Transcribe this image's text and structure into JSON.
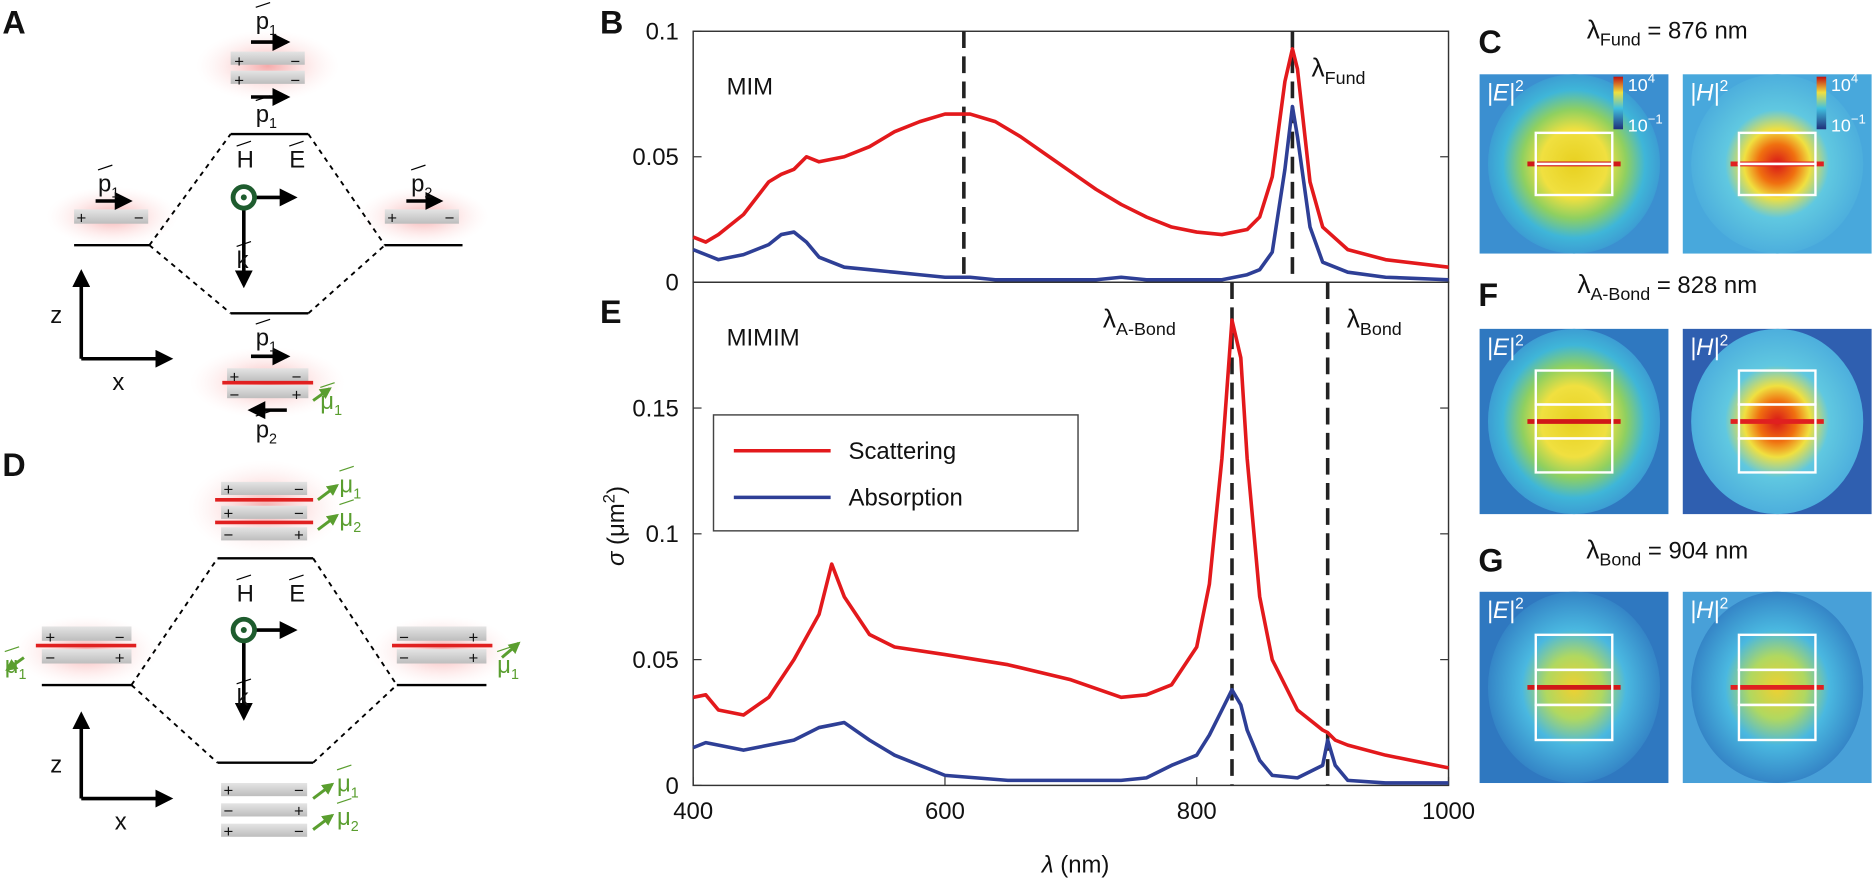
{
  "panel_labels": [
    "A",
    "B",
    "C",
    "D",
    "E",
    "F",
    "G"
  ],
  "symbols": {
    "plus": "+",
    "minus": "−"
  },
  "diagram_A": {
    "labels": [
      {
        "base": "p",
        "sub": "1"
      },
      {
        "base": "p",
        "sub": "1"
      },
      {
        "base": "p",
        "sub": "1"
      },
      {
        "base": "p",
        "sub": "2"
      },
      {
        "base": "H"
      },
      {
        "base": "E"
      },
      {
        "base": "k"
      },
      {
        "base": "p",
        "sub": "1"
      },
      {
        "base": "p",
        "sub": "2"
      },
      {
        "base": "μ",
        "sub": "1"
      },
      {
        "base": "z"
      },
      {
        "base": "x"
      }
    ]
  },
  "diagram_D": {
    "labels": [
      {
        "base": "μ",
        "sub": "1"
      },
      {
        "base": "μ",
        "sub": "2"
      },
      {
        "base": "H"
      },
      {
        "base": "E"
      },
      {
        "base": "k"
      },
      {
        "base": "μ",
        "sub": "1"
      },
      {
        "base": "μ",
        "sub": "1"
      },
      {
        "base": "μ",
        "sub": "1"
      },
      {
        "base": "μ",
        "sub": "2"
      },
      {
        "base": "z"
      },
      {
        "base": "x"
      }
    ]
  },
  "field_maps": [
    {
      "title": {
        "symbol": "λ",
        "sub": "Fund",
        "text": " = 876 nm"
      },
      "maps": [
        {
          "field": "|E|",
          "sup": "2"
        },
        {
          "field": "|H|",
          "sup": "2"
        }
      ],
      "colorbar": [
        {
          "base": "10",
          "sup": "4"
        },
        {
          "base": "10",
          "sup": "−1"
        }
      ]
    },
    {
      "title": {
        "symbol": "λ",
        "sub": "A-Bond",
        "text": " = 828 nm"
      },
      "maps": [
        {
          "field": "|E|",
          "sup": "2"
        },
        {
          "field": "|H|",
          "sup": "2"
        }
      ]
    },
    {
      "title": {
        "symbol": "λ",
        "sub": "Bond",
        "text": " = 904 nm"
      },
      "maps": [
        {
          "field": "|E|",
          "sup": "2"
        },
        {
          "field": "|H|",
          "sup": "2"
        }
      ]
    }
  ],
  "chart_data": [
    {
      "type": "line",
      "annotation": "MIM",
      "legend": false,
      "x": [
        400,
        410,
        420,
        440,
        460,
        470,
        480,
        490,
        500,
        520,
        540,
        560,
        580,
        600,
        620,
        640,
        660,
        680,
        700,
        720,
        740,
        760,
        780,
        800,
        820,
        840,
        850,
        860,
        870,
        876,
        880,
        890,
        900,
        920,
        950,
        1000
      ],
      "series": [
        {
          "name": "Scattering",
          "color": "#e3191c",
          "values": [
            0.018,
            0.016,
            0.019,
            0.027,
            0.04,
            0.043,
            0.045,
            0.05,
            0.048,
            0.05,
            0.054,
            0.06,
            0.064,
            0.067,
            0.067,
            0.064,
            0.058,
            0.051,
            0.044,
            0.037,
            0.031,
            0.026,
            0.022,
            0.02,
            0.019,
            0.021,
            0.026,
            0.042,
            0.08,
            0.093,
            0.085,
            0.04,
            0.022,
            0.013,
            0.009,
            0.006
          ]
        },
        {
          "name": "Absorption",
          "color": "#2e3f96",
          "values": [
            0.013,
            0.011,
            0.009,
            0.011,
            0.015,
            0.019,
            0.02,
            0.016,
            0.01,
            0.006,
            0.005,
            0.004,
            0.003,
            0.002,
            0.002,
            0.001,
            0.001,
            0.001,
            0.001,
            0.001,
            0.002,
            0.001,
            0.001,
            0.001,
            0.001,
            0.003,
            0.005,
            0.012,
            0.045,
            0.07,
            0.058,
            0.022,
            0.008,
            0.004,
            0.002,
            0.001
          ]
        }
      ],
      "vlines": [
        {
          "x": 615
        },
        {
          "x": 876,
          "label": {
            "symbol": "λ",
            "sub": "Fund"
          }
        }
      ],
      "xlim": [
        400,
        1000
      ],
      "ylim": [
        0,
        0.1
      ],
      "yticks": [
        0,
        0.05,
        0.1
      ]
    },
    {
      "type": "line",
      "annotation": "MIMIM",
      "legend": "upper left",
      "xlabel": [
        "λ",
        " (nm)"
      ],
      "ylabel": [
        "σ",
        " (μm",
        "2",
        ")"
      ],
      "x": [
        400,
        410,
        420,
        440,
        460,
        480,
        500,
        510,
        520,
        540,
        560,
        600,
        650,
        700,
        740,
        760,
        780,
        800,
        810,
        820,
        828,
        835,
        840,
        850,
        860,
        880,
        900,
        904,
        910,
        920,
        950,
        1000
      ],
      "series": [
        {
          "name": "Scattering",
          "color": "#e3191c",
          "values": [
            0.035,
            0.036,
            0.03,
            0.028,
            0.035,
            0.05,
            0.068,
            0.088,
            0.075,
            0.06,
            0.055,
            0.052,
            0.048,
            0.042,
            0.035,
            0.036,
            0.04,
            0.055,
            0.08,
            0.13,
            0.185,
            0.17,
            0.13,
            0.075,
            0.05,
            0.03,
            0.022,
            0.021,
            0.018,
            0.016,
            0.012,
            0.007
          ]
        },
        {
          "name": "Absorption",
          "color": "#2e3f96",
          "values": [
            0.015,
            0.017,
            0.016,
            0.014,
            0.016,
            0.018,
            0.023,
            0.024,
            0.025,
            0.018,
            0.012,
            0.004,
            0.002,
            0.002,
            0.002,
            0.003,
            0.008,
            0.012,
            0.02,
            0.03,
            0.038,
            0.032,
            0.022,
            0.01,
            0.004,
            0.003,
            0.008,
            0.018,
            0.008,
            0.002,
            0.001,
            0.001
          ]
        }
      ],
      "vlines": [
        {
          "x": 828,
          "label": {
            "symbol": "λ",
            "sub": "A-Bond"
          }
        },
        {
          "x": 904,
          "label": {
            "symbol": "λ",
            "sub": "Bond"
          }
        }
      ],
      "xlim": [
        400,
        1000
      ],
      "ylim": [
        0,
        0.2
      ],
      "xticks": [
        400,
        600,
        800,
        1000
      ],
      "yticks": [
        0,
        0.05,
        0.1,
        0.15
      ]
    }
  ]
}
